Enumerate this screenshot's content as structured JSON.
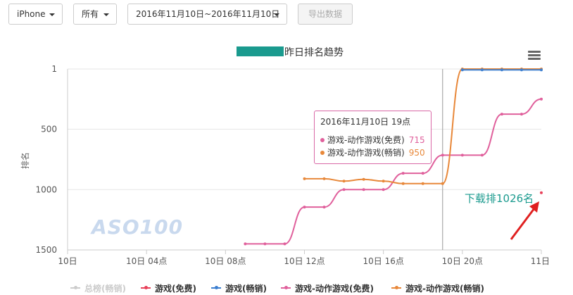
{
  "filters": {
    "device": "iPhone",
    "category": "所有",
    "date_range": "2016年11月10日~2016年11月10日",
    "export_label": "导出数据"
  },
  "chart": {
    "title": "昨日排名趋势",
    "y_axis_label": "排名",
    "menu_icon": "hamburger-menu-icon"
  },
  "tooltip": {
    "header": "2016年11月10日 19点",
    "rows": [
      {
        "label": "游戏-动作游戏(免费)",
        "value": "715",
        "color": "#e0609c"
      },
      {
        "label": "游戏-动作游戏(畅销)",
        "value": "950",
        "color": "#e8883a"
      }
    ]
  },
  "annotation": {
    "text": "下载排1026名",
    "color": "#1a9a8e",
    "arrow_color": "#e02020"
  },
  "watermark": "ASO100",
  "legend": [
    {
      "label": "总榜(畅销)",
      "color": "#bbbbbb",
      "disabled": true
    },
    {
      "label": "游戏(免费)",
      "color": "#e8415a",
      "disabled": false
    },
    {
      "label": "游戏(畅销)",
      "color": "#3c7fd0",
      "disabled": false
    },
    {
      "label": "游戏-动作游戏(免费)",
      "color": "#e0609c",
      "disabled": false
    },
    {
      "label": "游戏-动作游戏(畅销)",
      "color": "#e8883a",
      "disabled": false
    }
  ],
  "chart_data": {
    "type": "line",
    "title": "昨日排名趋势",
    "ylabel": "排名",
    "xlabel": "",
    "y_reversed": true,
    "ylim": [
      1,
      1500
    ],
    "yticks": [
      1,
      500,
      1000,
      1500
    ],
    "xlim": [
      0,
      24
    ],
    "xticks": [
      {
        "x": 0,
        "label": "10日"
      },
      {
        "x": 4,
        "label": "10日 04点"
      },
      {
        "x": 8,
        "label": "10日 08点"
      },
      {
        "x": 12,
        "label": "10日 12点"
      },
      {
        "x": 16,
        "label": "10日 16点"
      },
      {
        "x": 20,
        "label": "10日 20点"
      },
      {
        "x": 24,
        "label": "11日"
      }
    ],
    "grid": true,
    "legend_position": "bottom",
    "crosshair_x": 19,
    "series": [
      {
        "name": "游戏-动作游戏(免费)",
        "color": "#e0609c",
        "x": [
          9,
          10,
          11,
          12,
          13,
          14,
          15,
          16,
          17,
          18,
          19,
          20,
          21,
          22,
          23,
          24
        ],
        "y": [
          1450,
          1450,
          1450,
          1145,
          1145,
          1000,
          1000,
          1000,
          865,
          865,
          715,
          715,
          715,
          375,
          375,
          250
        ]
      },
      {
        "name": "游戏-动作游戏(畅销)",
        "color": "#e8883a",
        "x": [
          12,
          13,
          14,
          15,
          16,
          17,
          18,
          19,
          20,
          21,
          22,
          23,
          24
        ],
        "y": [
          910,
          910,
          930,
          915,
          930,
          950,
          950,
          950,
          1,
          1,
          1,
          1,
          1
        ]
      },
      {
        "name": "游戏(畅销)",
        "color": "#3c7fd0",
        "x": [
          20,
          21,
          22,
          23,
          24
        ],
        "y": [
          8,
          8,
          8,
          8,
          8
        ]
      },
      {
        "name": "游戏(免费)",
        "color": "#e8415a",
        "x": [
          24
        ],
        "y": [
          1026
        ]
      }
    ]
  }
}
